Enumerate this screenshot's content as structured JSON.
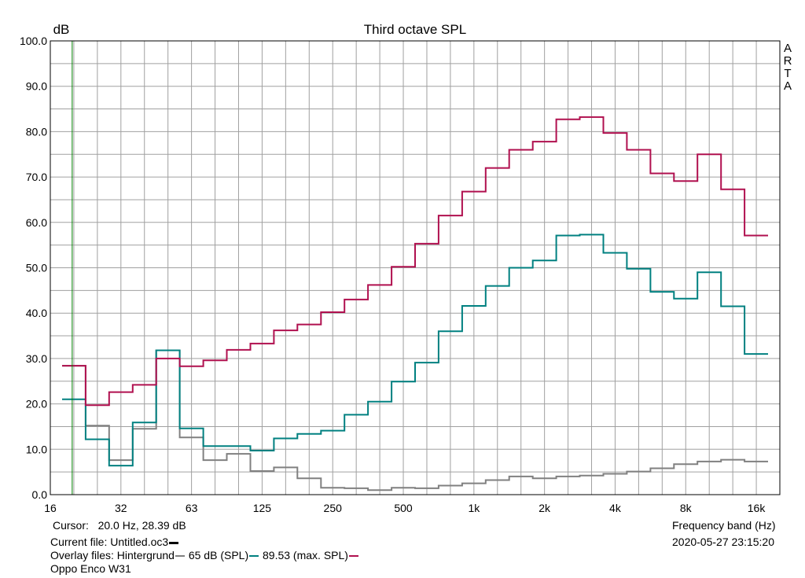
{
  "chart_data": {
    "type": "line",
    "title": "Third octave SPL",
    "ylabel": "dB",
    "xlabel": "Frequency band (Hz)",
    "watermark": "ARTA",
    "ylim": [
      0,
      100
    ],
    "grid": true,
    "x_scale": "third-octave bands (log)",
    "x_tick_labels": [
      "16",
      "32",
      "63",
      "125",
      "250",
      "500",
      "1k",
      "2k",
      "4k",
      "8k",
      "16k"
    ],
    "y_tick_labels": [
      "0.0",
      "10.0",
      "20.0",
      "30.0",
      "40.0",
      "50.0",
      "60.0",
      "70.0",
      "80.0",
      "90.0",
      "100.0"
    ],
    "bands": [
      "20",
      "25",
      "31.5",
      "40",
      "50",
      "63",
      "80",
      "100",
      "125",
      "160",
      "200",
      "250",
      "315",
      "400",
      "500",
      "630",
      "800",
      "1k",
      "1.25k",
      "1.6k",
      "2k",
      "2.5k",
      "3.15k",
      "4k",
      "5k",
      "6.3k",
      "8k",
      "10k",
      "12.5k",
      "16k"
    ],
    "series": [
      {
        "name": "Hintergrund",
        "color": "#808080",
        "values": [
          28.4,
          15.2,
          7.6,
          14.5,
          31.8,
          12.6,
          7.6,
          9.0,
          5.2,
          6.0,
          3.6,
          1.5,
          1.4,
          1.0,
          1.5,
          1.4,
          2.0,
          2.5,
          3.2,
          4.0,
          3.6,
          4.0,
          4.2,
          4.6,
          5.1,
          5.8,
          6.7,
          7.3,
          7.7,
          7.3
        ]
      },
      {
        "name": "65 dB (SPL)",
        "color": "#008080",
        "values": [
          21.0,
          12.2,
          6.4,
          15.9,
          31.8,
          14.6,
          10.7,
          10.7,
          9.7,
          12.4,
          13.4,
          14.1,
          17.6,
          20.5,
          24.9,
          29.1,
          36.0,
          41.6,
          46.0,
          50.0,
          51.6,
          57.1,
          57.3,
          53.3,
          49.8,
          44.7,
          43.2,
          49.0,
          41.5,
          31.0
        ]
      },
      {
        "name": "89.53 (max. SPL)",
        "color": "#b0104f",
        "values": [
          28.4,
          19.7,
          22.6,
          24.2,
          30.0,
          28.3,
          29.6,
          31.9,
          33.3,
          36.2,
          37.5,
          40.2,
          43.0,
          46.2,
          50.2,
          55.3,
          61.5,
          66.8,
          72.0,
          76.0,
          77.8,
          82.7,
          83.2,
          79.7,
          76.0,
          70.8,
          69.1,
          75.0,
          67.3,
          57.1
        ]
      }
    ],
    "cursor": {
      "x": 20.0
    }
  },
  "footer": {
    "cursor_label": "Cursor:",
    "cursor_value": "20.0 Hz, 28.39 dB",
    "current_file": "Current file: Untitled.oc3",
    "overlay_label": "Overlay files: Hintergrund",
    "overlay_2": "65 dB (SPL)",
    "overlay_3": "89.53 (max. SPL)",
    "device": "Oppo Enco W31",
    "xaxis_caption": "Frequency band (Hz)",
    "timestamp": "2020-05-27  23:15:20"
  },
  "colors": {
    "current_file_swatch": "#000000",
    "grid": "#a0a0a0",
    "cursor": "#008000"
  }
}
